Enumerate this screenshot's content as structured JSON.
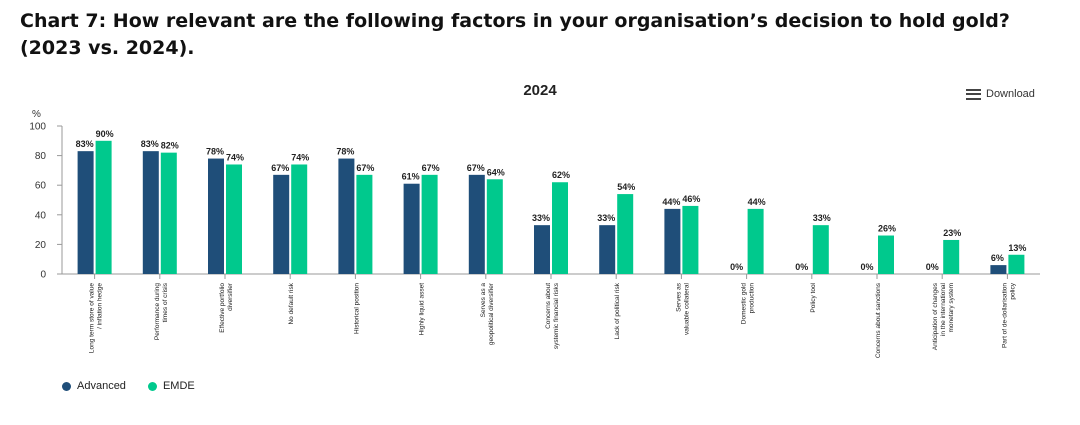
{
  "page": {
    "heading": "Chart 7: How relevant are the following factors in your organisation’s decision to hold gold? (2023 vs. 2024).",
    "download_label": "Download",
    "colors": {
      "advanced": "#1f4e79",
      "emde": "#00c98d"
    }
  },
  "chart_data": {
    "type": "bar",
    "title": "2024",
    "ylabel": "%",
    "ylim": [
      0,
      100
    ],
    "yticks": [
      0,
      20,
      40,
      60,
      80,
      100
    ],
    "grid": false,
    "legend_position": "bottom-left",
    "categories": [
      [
        "Long term store of value",
        "/ inflation hedge"
      ],
      [
        "Performance during",
        "times of crisis"
      ],
      [
        "Effective portfolio",
        "diversifier"
      ],
      [
        "No default risk"
      ],
      [
        "Historical position"
      ],
      [
        "Highly liquid asset"
      ],
      [
        "Serves as a",
        "geopolitical diversifier"
      ],
      [
        "Concerns about",
        "systemic financial risks"
      ],
      [
        "Lack of political risk"
      ],
      [
        "Serves as",
        "valuable collateral"
      ],
      [
        "Domestic gold",
        "production"
      ],
      [
        "Policy tool"
      ],
      [
        "Concerns about sanctions"
      ],
      [
        "Anticipation of changes",
        "in the international",
        "monetary system"
      ],
      [
        "Part of de-dollarisation",
        "policy"
      ]
    ],
    "series": [
      {
        "name": "Advanced",
        "values": [
          83,
          83,
          78,
          67,
          78,
          61,
          67,
          33,
          33,
          44,
          0,
          0,
          0,
          0,
          6
        ],
        "labels": [
          "83%",
          "83%",
          "78%",
          "67%",
          "78%",
          "61%",
          "67%",
          "33%",
          "33%",
          "44%",
          "0%",
          "0%",
          "0%",
          "0%",
          "6%"
        ]
      },
      {
        "name": "EMDE",
        "values": [
          90,
          82,
          74,
          74,
          67,
          67,
          64,
          62,
          54,
          46,
          44,
          33,
          26,
          23,
          13
        ],
        "labels": [
          "90%",
          "82%",
          "74%",
          "74%",
          "67%",
          "67%",
          "64%",
          "62%",
          "54%",
          "46%",
          "44%",
          "33%",
          "26%",
          "23%",
          "13%"
        ]
      }
    ]
  }
}
